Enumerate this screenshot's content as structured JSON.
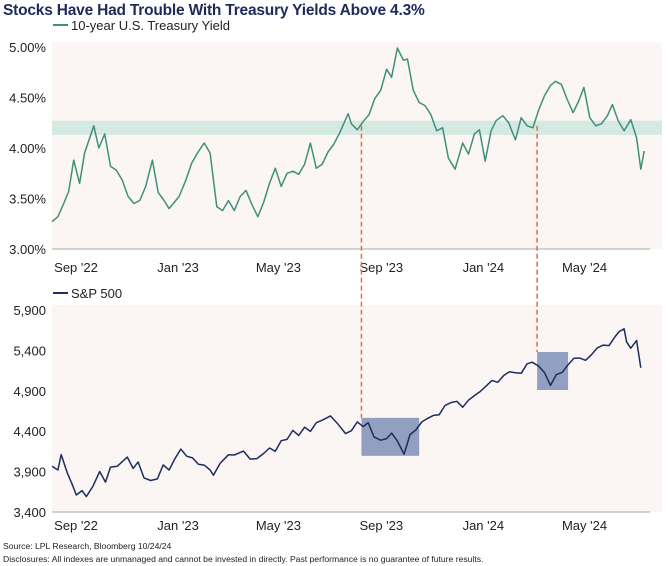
{
  "title": "Stocks Have Had Trouble With Treasury Yields Above 4.3%",
  "source": "Source: LPL Research, Bloomberg 10/24/24",
  "disclosure": "Disclosures: All indexes are unmanaged and cannot be invested in directly. Past performance is no guarantee of future results.",
  "colors": {
    "yield": "#3f8f7d",
    "band": "#d3e9e2",
    "sp500": "#1c2d5e",
    "box": "#7f8fb6",
    "dashed": "#d9763a",
    "plot_bg": "#fbf6f4",
    "title": "#1d2b5a"
  },
  "chart_data": [
    {
      "type": "line",
      "legend": "10-year U.S. Treasury Yield",
      "legend_placement": "top-left",
      "ylim": [
        3.0,
        5.0
      ],
      "yticks": [
        "3.00%",
        "3.50%",
        "4.00%",
        "4.50%",
        "5.00%"
      ],
      "ytick_values": [
        3.0,
        3.5,
        4.0,
        4.5,
        5.0
      ],
      "xticks": [
        "Sep '22",
        "Jan '23",
        "May '23",
        "Sep '23",
        "Jan '24",
        "May '24"
      ],
      "xtick_dates": [
        "2022-09",
        "2023-01",
        "2023-05",
        "2023-09",
        "2024-01",
        "2024-05"
      ],
      "grid": false,
      "highlight_band": [
        4.13,
        4.27
      ],
      "markers": [
        "2023-09-06",
        "2024-04-03"
      ],
      "series": [
        {
          "name": "10-year U.S. Treasury Yield",
          "x": [
            "2022-09-01",
            "2022-09-08",
            "2022-09-15",
            "2022-09-21",
            "2022-09-27",
            "2022-10-04",
            "2022-10-10",
            "2022-10-21",
            "2022-10-27",
            "2022-11-03",
            "2022-11-10",
            "2022-11-17",
            "2022-11-24",
            "2022-12-01",
            "2022-12-08",
            "2022-12-15",
            "2022-12-22",
            "2022-12-30",
            "2023-01-06",
            "2023-01-13",
            "2023-01-19",
            "2023-01-31",
            "2023-02-08",
            "2023-02-15",
            "2023-02-22",
            "2023-03-02",
            "2023-03-09",
            "2023-03-17",
            "2023-03-24",
            "2023-03-31",
            "2023-04-07",
            "2023-04-14",
            "2023-04-21",
            "2023-04-28",
            "2023-05-05",
            "2023-05-12",
            "2023-05-19",
            "2023-05-26",
            "2023-06-02",
            "2023-06-09",
            "2023-06-16",
            "2023-06-23",
            "2023-06-30",
            "2023-07-07",
            "2023-07-14",
            "2023-07-21",
            "2023-07-28",
            "2023-08-04",
            "2023-08-11",
            "2023-08-21",
            "2023-08-25",
            "2023-09-01",
            "2023-09-08",
            "2023-09-15",
            "2023-09-22",
            "2023-09-29",
            "2023-10-06",
            "2023-10-12",
            "2023-10-19",
            "2023-10-26",
            "2023-10-31",
            "2023-11-07",
            "2023-11-14",
            "2023-11-21",
            "2023-11-28",
            "2023-12-05",
            "2023-12-12",
            "2023-12-19",
            "2023-12-27",
            "2024-01-05",
            "2024-01-12",
            "2024-01-19",
            "2024-01-25",
            "2024-02-01",
            "2024-02-08",
            "2024-02-14",
            "2024-02-22",
            "2024-02-29",
            "2024-03-08",
            "2024-03-15",
            "2024-03-22",
            "2024-03-29",
            "2024-04-05",
            "2024-04-12",
            "2024-04-19",
            "2024-04-25",
            "2024-05-02",
            "2024-05-09",
            "2024-05-16",
            "2024-05-23",
            "2024-05-29",
            "2024-06-05",
            "2024-06-12",
            "2024-06-19",
            "2024-06-26",
            "2024-07-02",
            "2024-07-09",
            "2024-07-16",
            "2024-07-24",
            "2024-07-31",
            "2024-08-05",
            "2024-08-09"
          ],
          "values": [
            3.27,
            3.32,
            3.45,
            3.57,
            3.88,
            3.65,
            3.95,
            4.22,
            4.0,
            4.14,
            3.82,
            3.78,
            3.68,
            3.52,
            3.45,
            3.48,
            3.62,
            3.88,
            3.56,
            3.48,
            3.4,
            3.52,
            3.68,
            3.85,
            3.95,
            4.05,
            3.95,
            3.42,
            3.38,
            3.48,
            3.38,
            3.52,
            3.58,
            3.44,
            3.32,
            3.46,
            3.65,
            3.8,
            3.62,
            3.75,
            3.77,
            3.74,
            3.84,
            4.05,
            3.8,
            3.84,
            3.96,
            4.04,
            4.15,
            4.34,
            4.24,
            4.18,
            4.26,
            4.33,
            4.49,
            4.57,
            4.78,
            4.7,
            4.99,
            4.87,
            4.88,
            4.57,
            4.45,
            4.42,
            4.33,
            4.17,
            4.2,
            3.9,
            3.79,
            4.05,
            3.94,
            4.14,
            4.18,
            3.87,
            4.17,
            4.27,
            4.32,
            4.25,
            4.08,
            4.3,
            4.22,
            4.2,
            4.38,
            4.52,
            4.62,
            4.66,
            4.63,
            4.48,
            4.35,
            4.47,
            4.6,
            4.3,
            4.22,
            4.24,
            4.32,
            4.43,
            4.27,
            4.17,
            4.28,
            4.1,
            3.79,
            3.97
          ]
        }
      ]
    },
    {
      "type": "line",
      "legend": "S&P 500",
      "legend_placement": "top-left",
      "ylim": [
        3400,
        5900
      ],
      "yticks": [
        "3,400",
        "3,900",
        "4,400",
        "4,900",
        "5,400",
        "5,900"
      ],
      "ytick_values": [
        3400,
        3900,
        4400,
        4900,
        5400,
        5900
      ],
      "xticks": [
        "Sep '22",
        "Jan '23",
        "May '23",
        "Sep '23",
        "Jan '24",
        "May '24"
      ],
      "xtick_dates": [
        "2022-09",
        "2023-01",
        "2023-05",
        "2023-09",
        "2024-01",
        "2024-05"
      ],
      "grid": false,
      "highlight_boxes": [
        {
          "x": [
            "2023-09-06",
            "2023-11-14"
          ],
          "y": [
            4095,
            4565
          ]
        },
        {
          "x": [
            "2024-04-03",
            "2024-05-10"
          ],
          "y": [
            4910,
            5380
          ]
        }
      ],
      "series": [
        {
          "name": "S&P 500",
          "x": [
            "2022-09-01",
            "2022-09-08",
            "2022-09-12",
            "2022-09-19",
            "2022-09-26",
            "2022-09-30",
            "2022-10-07",
            "2022-10-12",
            "2022-10-20",
            "2022-10-28",
            "2022-11-04",
            "2022-11-10",
            "2022-11-18",
            "2022-11-30",
            "2022-12-07",
            "2022-12-13",
            "2022-12-20",
            "2022-12-28",
            "2023-01-05",
            "2023-01-12",
            "2023-01-19",
            "2023-01-26",
            "2023-02-02",
            "2023-02-09",
            "2023-02-16",
            "2023-02-23",
            "2023-03-02",
            "2023-03-09",
            "2023-03-13",
            "2023-03-21",
            "2023-03-31",
            "2023-04-07",
            "2023-04-18",
            "2023-04-26",
            "2023-05-04",
            "2023-05-12",
            "2023-05-19",
            "2023-05-26",
            "2023-06-02",
            "2023-06-09",
            "2023-06-16",
            "2023-06-23",
            "2023-06-30",
            "2023-07-07",
            "2023-07-14",
            "2023-07-21",
            "2023-07-31",
            "2023-08-08",
            "2023-08-18",
            "2023-08-25",
            "2023-09-01",
            "2023-09-08",
            "2023-09-14",
            "2023-09-21",
            "2023-09-29",
            "2023-10-06",
            "2023-10-12",
            "2023-10-19",
            "2023-10-27",
            "2023-11-03",
            "2023-11-10",
            "2023-11-17",
            "2023-11-24",
            "2023-12-01",
            "2023-12-08",
            "2023-12-15",
            "2023-12-22",
            "2023-12-29",
            "2024-01-05",
            "2024-01-12",
            "2024-01-19",
            "2024-01-26",
            "2024-02-02",
            "2024-02-09",
            "2024-02-16",
            "2024-02-23",
            "2024-03-01",
            "2024-03-08",
            "2024-03-15",
            "2024-03-22",
            "2024-03-28",
            "2024-04-05",
            "2024-04-12",
            "2024-04-19",
            "2024-04-26",
            "2024-05-03",
            "2024-05-10",
            "2024-05-17",
            "2024-05-24",
            "2024-05-31",
            "2024-06-07",
            "2024-06-14",
            "2024-06-21",
            "2024-06-28",
            "2024-07-05",
            "2024-07-10",
            "2024-07-16",
            "2024-07-19",
            "2024-07-24",
            "2024-07-31",
            "2024-08-05"
          ],
          "values": [
            3966,
            3920,
            4110,
            3890,
            3720,
            3610,
            3665,
            3590,
            3720,
            3901,
            3770,
            3956,
            3965,
            4080,
            3940,
            4019,
            3822,
            3790,
            3810,
            3983,
            3920,
            4060,
            4179,
            4090,
            4070,
            3990,
            3981,
            3920,
            3855,
            4002,
            4109,
            4105,
            4154,
            4055,
            4061,
            4124,
            4192,
            4151,
            4282,
            4298,
            4410,
            4348,
            4450,
            4398,
            4505,
            4536,
            4589,
            4499,
            4370,
            4406,
            4515,
            4457,
            4505,
            4330,
            4288,
            4308,
            4376,
            4278,
            4117,
            4358,
            4415,
            4514,
            4559,
            4595,
            4604,
            4719,
            4754,
            4770,
            4697,
            4784,
            4840,
            4891,
            4958,
            5027,
            5005,
            5089,
            5137,
            5124,
            5117,
            5234,
            5254,
            5204,
            5123,
            4967,
            5100,
            5128,
            5223,
            5303,
            5305,
            5278,
            5347,
            5431,
            5465,
            5460,
            5567,
            5633,
            5667,
            5505,
            5427,
            5522,
            5186
          ]
        }
      ]
    }
  ]
}
